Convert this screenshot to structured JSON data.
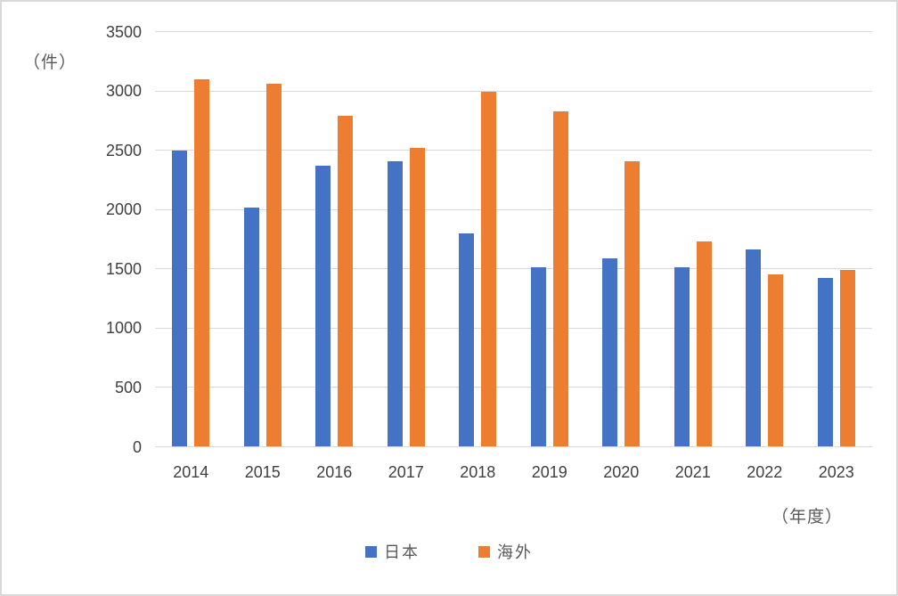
{
  "canvas": {
    "background": "#FFFFFF",
    "border_color": "#D9D9D9"
  },
  "chart_data": {
    "type": "bar",
    "title": "",
    "categories": [
      "2014",
      "2015",
      "2016",
      "2017",
      "2018",
      "2019",
      "2020",
      "2021",
      "2022",
      "2023"
    ],
    "series": [
      {
        "name": "日本",
        "color": "#4472C4",
        "values": [
          2500,
          2020,
          2370,
          2410,
          1800,
          1515,
          1590,
          1515,
          1660,
          1420
        ]
      },
      {
        "name": "海外",
        "color": "#ED7D31",
        "values": [
          3100,
          3060,
          2790,
          2520,
          2990,
          2830,
          2410,
          1730,
          1450,
          1490
        ]
      }
    ],
    "ylabel": "（件）",
    "xlabel": "（年度）",
    "ylim": [
      0,
      3500
    ],
    "ytick_step": 500,
    "grid": true,
    "gridline_color": "#D9D9D9",
    "axis_text_color": "#404040",
    "legend_position": "bottom"
  }
}
